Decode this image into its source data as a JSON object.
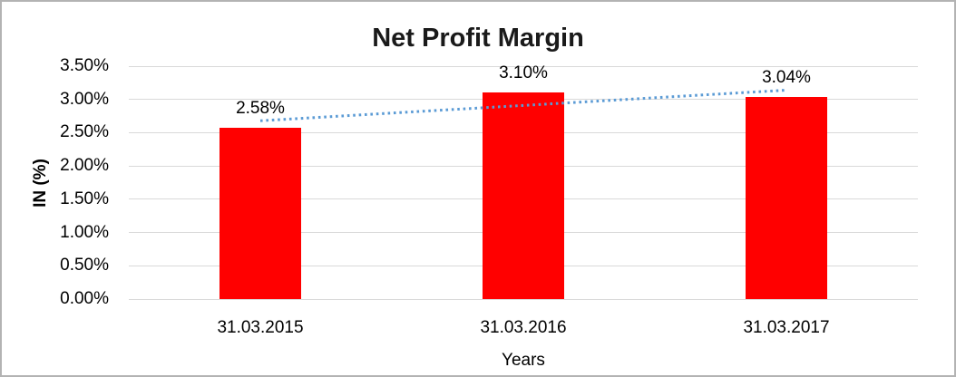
{
  "window": {
    "background_color": "#ffffff",
    "border_color": "#b3b3b3"
  },
  "chart_data": {
    "type": "bar",
    "title": "Net Profit Margin",
    "xlabel": "Years",
    "ylabel": "IN (%)",
    "categories": [
      "31.03.2015",
      "31.03.2016",
      "31.03.2017"
    ],
    "values": [
      2.58,
      3.1,
      3.04
    ],
    "data_labels": [
      "2.58%",
      "3.10%",
      "3.04%"
    ],
    "ylim": [
      0,
      3.5
    ],
    "ytick_step": 0.5,
    "ytick_labels": [
      "0.00%",
      "0.50%",
      "1.00%",
      "1.50%",
      "2.00%",
      "2.50%",
      "3.00%",
      "3.50%"
    ],
    "grid": true,
    "legend": "none",
    "bar_color": "#ff0000",
    "gridline_color": "#d9d9d9",
    "text_color": "#000000",
    "trendline": {
      "type": "linear",
      "style": "dotted",
      "color": "#5b9bd5",
      "start_value": 2.68,
      "end_value": 3.14
    }
  }
}
